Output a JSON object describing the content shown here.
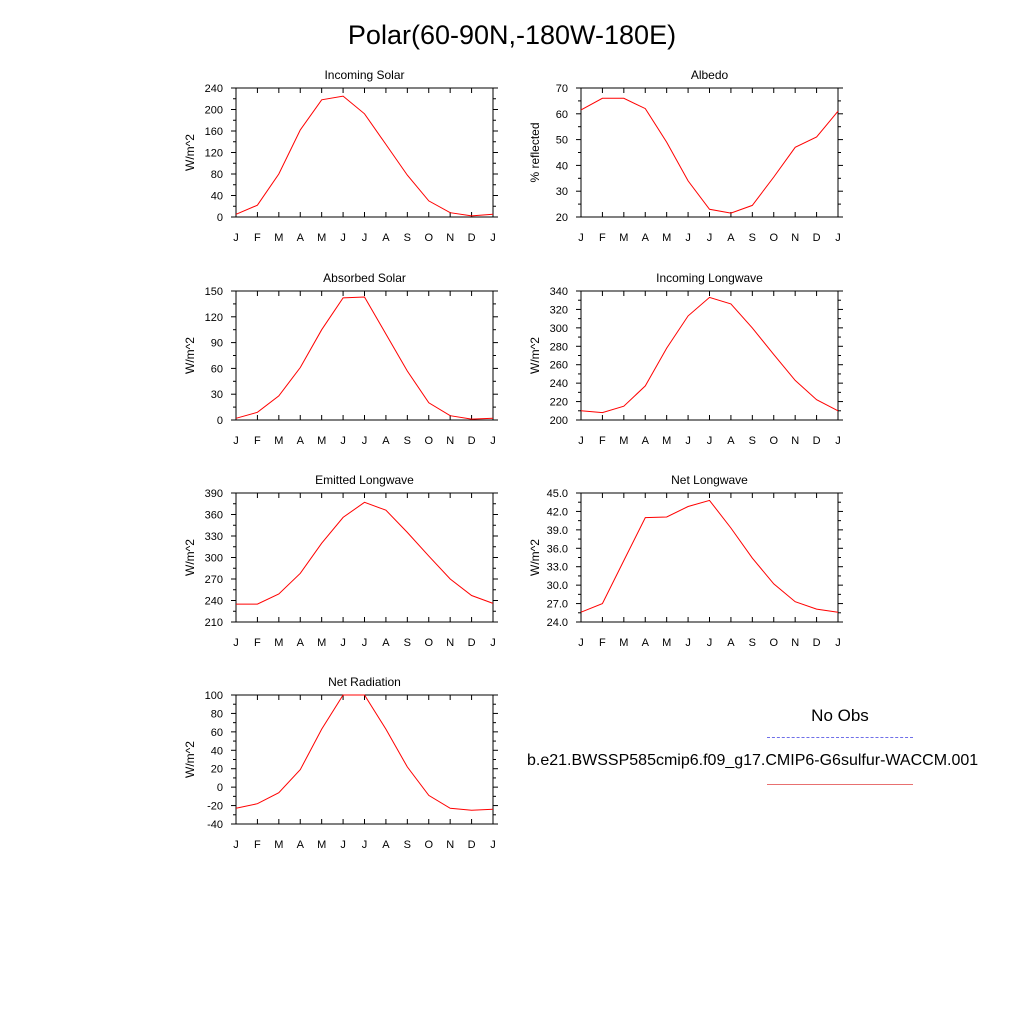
{
  "title": "Polar(60-90N,-180W-180E)",
  "legend": {
    "obs_label": "No Obs",
    "case_label": "b.e21.BWSSP585cmip6.f09_g17.CMIP6-G6sulfur-WACCM.001",
    "obs_color": "#6f6fe8",
    "case_color": "#ff0000"
  },
  "chart_data": [
    {
      "type": "line",
      "title": "Incoming Solar",
      "ylabel": "W/m^2",
      "x": [
        "J",
        "F",
        "M",
        "A",
        "M",
        "J",
        "J",
        "A",
        "S",
        "O",
        "N",
        "D",
        "J"
      ],
      "ylim": [
        0,
        240
      ],
      "yticks": [
        0,
        40,
        80,
        120,
        160,
        200,
        240
      ],
      "yticklabels": [
        "0",
        "40",
        "80",
        "120",
        "160",
        "200",
        "240"
      ],
      "series": [
        {
          "values": [
            5,
            22,
            80,
            162,
            218,
            225,
            192,
            135,
            78,
            30,
            8,
            2,
            5
          ]
        }
      ]
    },
    {
      "type": "line",
      "title": "Albedo",
      "ylabel": "% reflected",
      "x": [
        "J",
        "F",
        "M",
        "A",
        "M",
        "J",
        "J",
        "A",
        "S",
        "O",
        "N",
        "D",
        "J"
      ],
      "ylim": [
        20,
        70
      ],
      "yticks": [
        20,
        30,
        40,
        50,
        60,
        70
      ],
      "yticklabels": [
        "20",
        "30",
        "40",
        "50",
        "60",
        "70"
      ],
      "series": [
        {
          "values": [
            61.5,
            66,
            66,
            62,
            49,
            34,
            23,
            21.5,
            24.5,
            35.5,
            47,
            51,
            61
          ]
        }
      ]
    },
    {
      "type": "line",
      "title": "Absorbed Solar",
      "ylabel": "W/m^2",
      "x": [
        "J",
        "F",
        "M",
        "A",
        "M",
        "J",
        "J",
        "A",
        "S",
        "O",
        "N",
        "D",
        "J"
      ],
      "ylim": [
        0,
        150
      ],
      "yticks": [
        0,
        30,
        60,
        90,
        120,
        150
      ],
      "yticklabels": [
        "0",
        "30",
        "60",
        "90",
        "120",
        "150"
      ],
      "series": [
        {
          "values": [
            2,
            9,
            28,
            61,
            105,
            142,
            143,
            100,
            57,
            20,
            5,
            1,
            2
          ]
        }
      ]
    },
    {
      "type": "line",
      "title": "Incoming Longwave",
      "ylabel": "W/m^2",
      "x": [
        "J",
        "F",
        "M",
        "A",
        "M",
        "J",
        "J",
        "A",
        "S",
        "O",
        "N",
        "D",
        "J"
      ],
      "ylim": [
        200,
        340
      ],
      "yticks": [
        200,
        220,
        240,
        260,
        280,
        300,
        320,
        340
      ],
      "yticklabels": [
        "200",
        "220",
        "240",
        "260",
        "280",
        "300",
        "320",
        "340"
      ],
      "series": [
        {
          "values": [
            210,
            208,
            215,
            237,
            278,
            313,
            333,
            326,
            300,
            271,
            243,
            222,
            210
          ]
        }
      ]
    },
    {
      "type": "line",
      "title": "Emitted Longwave",
      "ylabel": "W/m^2",
      "x": [
        "J",
        "F",
        "M",
        "A",
        "M",
        "J",
        "J",
        "A",
        "S",
        "O",
        "N",
        "D",
        "J"
      ],
      "ylim": [
        210,
        390
      ],
      "yticks": [
        210,
        240,
        270,
        300,
        330,
        360,
        390
      ],
      "yticklabels": [
        "210",
        "240",
        "270",
        "300",
        "330",
        "360",
        "390"
      ],
      "series": [
        {
          "values": [
            235,
            235,
            249,
            278,
            320,
            356,
            377,
            366,
            335,
            302,
            270,
            247,
            236
          ]
        }
      ]
    },
    {
      "type": "line",
      "title": "Net Longwave",
      "ylabel": "W/m^2",
      "x": [
        "J",
        "F",
        "M",
        "A",
        "M",
        "J",
        "J",
        "A",
        "S",
        "O",
        "N",
        "D",
        "J"
      ],
      "ylim": [
        24,
        45
      ],
      "yticks": [
        24,
        27,
        30,
        33,
        36,
        39,
        42,
        45
      ],
      "yticklabels": [
        "24.0",
        "27.0",
        "30.0",
        "33.0",
        "36.0",
        "39.0",
        "42.0",
        "45.0"
      ],
      "series": [
        {
          "values": [
            25.6,
            27,
            34,
            41,
            41.1,
            42.8,
            43.8,
            39.3,
            34.4,
            30.2,
            27.3,
            26.1,
            25.6
          ]
        }
      ]
    },
    {
      "type": "line",
      "title": "Net Radiation",
      "ylabel": "W/m^2",
      "x": [
        "J",
        "F",
        "M",
        "A",
        "M",
        "J",
        "J",
        "A",
        "S",
        "O",
        "N",
        "D",
        "J"
      ],
      "ylim": [
        -40,
        100
      ],
      "yticks": [
        -40,
        -20,
        0,
        20,
        40,
        60,
        80,
        100
      ],
      "yticklabels": [
        "-40",
        "-20",
        "0",
        "20",
        "40",
        "60",
        "80",
        "100"
      ],
      "series": [
        {
          "values": [
            -23,
            -18,
            -6,
            19,
            63,
            100,
            100,
            63,
            22,
            -9,
            -23,
            -25,
            -24
          ]
        }
      ]
    }
  ]
}
